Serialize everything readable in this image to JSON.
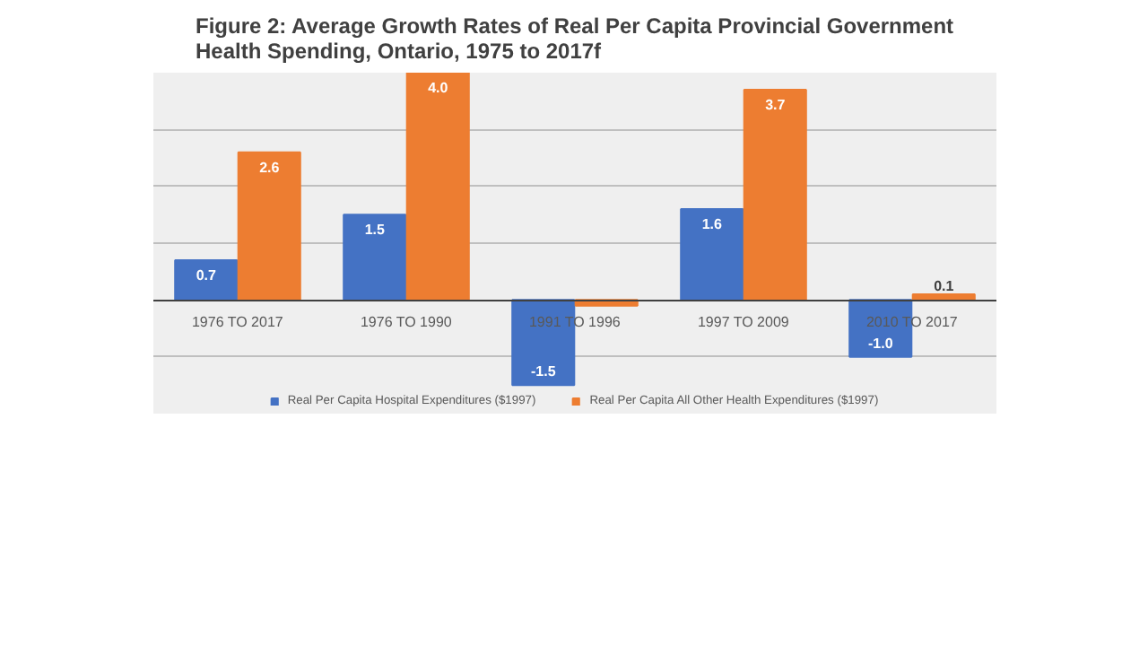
{
  "chart_data": {
    "type": "bar",
    "title": "Figure 2: Average Growth Rates of Real Per Capita Provincial Government\nHealth Spending, Ontario, 1975 to 2017f",
    "categories": [
      "1976 TO 2017",
      "1976 TO 1990",
      "1991 TO 1996",
      "1997 TO 2009",
      "2010 TO 2017"
    ],
    "series": [
      {
        "name": "Real Per Capita Hospital Expenditures ($1997)",
        "color": "#4472c4",
        "values": [
          0.7,
          1.5,
          -1.5,
          1.6,
          -1.0
        ],
        "value_labels": [
          "0.7",
          "1.5",
          "-1.5",
          "1.6",
          "-1.0"
        ]
      },
      {
        "name": "Real Per Capita All Other Health Expenditures ($1997)",
        "color": "#ed7d31",
        "values": [
          2.6,
          4.0,
          -0.1,
          3.7,
          0.1
        ],
        "value_labels": [
          "2.6",
          "4.0",
          null,
          "3.7",
          "0.1"
        ]
      }
    ],
    "ylim": [
      -2,
      4
    ],
    "yticks": [
      {
        "value": -2,
        "label": null
      },
      {
        "value": -1,
        "label": null
      },
      {
        "value": 0,
        "label": null
      },
      {
        "value": 1,
        "label": null
      },
      {
        "value": 2,
        "label": null
      },
      {
        "value": 3,
        "label": null
      },
      {
        "value": 4,
        "label": null
      }
    ],
    "tick_labels": "x",
    "grid": "y",
    "legend": "bottom"
  }
}
